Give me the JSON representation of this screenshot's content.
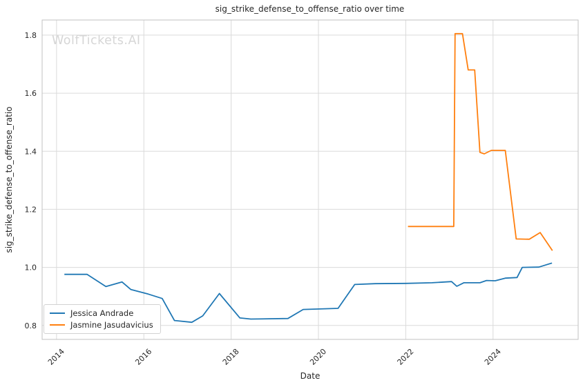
{
  "title": "sig_strike_defense_to_offense_ratio over time",
  "watermark": "WolfTickets.AI",
  "colors": {
    "series_blue": "#1f77b4",
    "series_orange": "#ff7f0e",
    "gridline": "#dadada",
    "spine": "#c2c2c2",
    "text": "#262626",
    "watermark": "#d6d6d6",
    "background": "#ffffff"
  },
  "chart_data": {
    "type": "line",
    "title": "sig_strike_defense_to_offense_ratio over time",
    "xlabel": "Date",
    "ylabel": "sig_strike_defense_to_offense_ratio",
    "xlim": [
      2013.67,
      2025.95
    ],
    "ylim": [
      0.752,
      1.852
    ],
    "xticks": [
      2014,
      2016,
      2018,
      2020,
      2022,
      2024
    ],
    "yticks": [
      0.8,
      1.0,
      1.2,
      1.4,
      1.6,
      1.8
    ],
    "grid": true,
    "legend_position": "lower-left",
    "series": [
      {
        "name": "Jessica Andrade",
        "color": "#1f77b4",
        "points": [
          [
            2014.18,
            0.976
          ],
          [
            2014.7,
            0.976
          ],
          [
            2015.13,
            0.934
          ],
          [
            2015.5,
            0.95
          ],
          [
            2015.7,
            0.924
          ],
          [
            2016.1,
            0.908
          ],
          [
            2016.42,
            0.893
          ],
          [
            2016.7,
            0.817
          ],
          [
            2017.1,
            0.811
          ],
          [
            2017.35,
            0.833
          ],
          [
            2017.73,
            0.91
          ],
          [
            2018.2,
            0.826
          ],
          [
            2018.45,
            0.822
          ],
          [
            2019.3,
            0.824
          ],
          [
            2019.65,
            0.855
          ],
          [
            2020.45,
            0.859
          ],
          [
            2020.83,
            0.941
          ],
          [
            2021.3,
            0.944
          ],
          [
            2022.0,
            0.945
          ],
          [
            2022.6,
            0.947
          ],
          [
            2023.05,
            0.951
          ],
          [
            2023.17,
            0.935
          ],
          [
            2023.33,
            0.947
          ],
          [
            2023.7,
            0.947
          ],
          [
            2023.85,
            0.955
          ],
          [
            2024.05,
            0.954
          ],
          [
            2024.28,
            0.963
          ],
          [
            2024.55,
            0.965
          ],
          [
            2024.67,
            1.0
          ],
          [
            2025.05,
            1.001
          ],
          [
            2025.35,
            1.015
          ]
        ]
      },
      {
        "name": "Jasmine Jasudavicius",
        "color": "#ff7f0e",
        "points": [
          [
            2022.05,
            1.141
          ],
          [
            2023.1,
            1.141
          ],
          [
            2023.13,
            1.805
          ],
          [
            2023.3,
            1.805
          ],
          [
            2023.43,
            1.68
          ],
          [
            2023.58,
            1.68
          ],
          [
            2023.7,
            1.396
          ],
          [
            2023.8,
            1.391
          ],
          [
            2023.96,
            1.403
          ],
          [
            2024.28,
            1.403
          ],
          [
            2024.53,
            1.098
          ],
          [
            2024.83,
            1.097
          ],
          [
            2025.08,
            1.12
          ],
          [
            2025.36,
            1.058
          ]
        ]
      }
    ]
  }
}
